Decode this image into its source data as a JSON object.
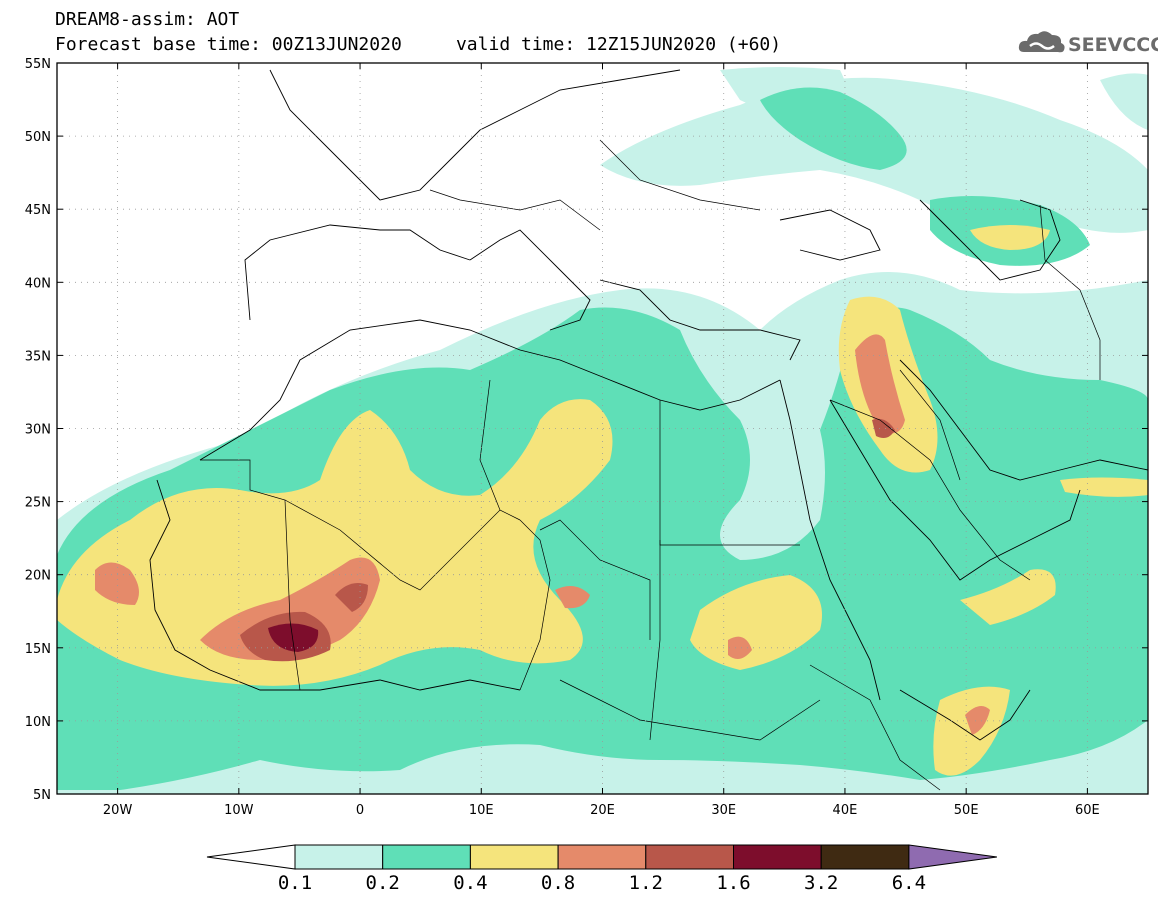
{
  "title": {
    "line1": "DREAM8-assim: AOT",
    "line2": "Forecast base time: 00Z13JUN2020     valid time: 12Z15JUN2020 (+60)"
  },
  "logo": {
    "text": "SEEVCCC",
    "icon": "cloud-logo-icon",
    "color": "#6b6b6b"
  },
  "map": {
    "lon_range": [
      -25,
      65
    ],
    "lat_range": [
      5,
      55
    ],
    "lat_ticks": [
      "55N",
      "50N",
      "45N",
      "40N",
      "35N",
      "30N",
      "25N",
      "20N",
      "15N",
      "10N",
      "5N"
    ],
    "lon_ticks": [
      "20W",
      "10W",
      "0",
      "10E",
      "20E",
      "30E",
      "40E",
      "50E",
      "60E"
    ],
    "grid": "dotted"
  },
  "legend": {
    "colors": [
      "#ffffff",
      "#c7f2e9",
      "#5fdfb7",
      "#f5e47c",
      "#e58a6a",
      "#b8574a",
      "#7d0d2c",
      "#3f2a12",
      "#8f6bb0"
    ],
    "labels": [
      "0.1",
      "0.2",
      "0.4",
      "0.8",
      "1.2",
      "1.6",
      "3.2",
      "6.4"
    ]
  }
}
